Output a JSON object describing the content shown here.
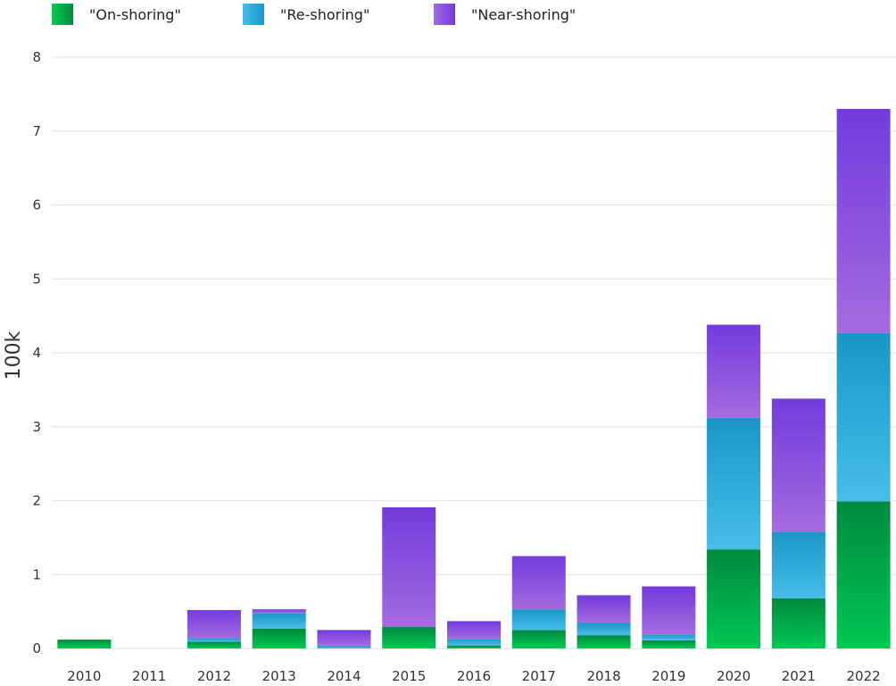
{
  "chart_data": {
    "type": "bar",
    "stacked": true,
    "title": "",
    "xlabel": "",
    "ylabel": "100k",
    "ylim": [
      0,
      8
    ],
    "yticks": [
      0,
      1,
      2,
      3,
      4,
      5,
      6,
      7,
      8
    ],
    "grid": true,
    "legend_position": "top-left",
    "categories": [
      "2010",
      "2011",
      "2012",
      "2013",
      "2014",
      "2015",
      "2016",
      "2017",
      "2018",
      "2019",
      "2020",
      "2021",
      "2022"
    ],
    "series": [
      {
        "name": "\"On-shoring\"",
        "color_top": "#008A3E",
        "color_bottom": "#00C853",
        "values": [
          0.12,
          0,
          0.09,
          0.27,
          0,
          0.29,
          0.04,
          0.25,
          0.18,
          0.11,
          1.34,
          0.68,
          1.99
        ]
      },
      {
        "name": "\"Re-shoring\"",
        "color_top": "#1A96C6",
        "color_bottom": "#47BDEA",
        "values": [
          0,
          0,
          0.05,
          0.21,
          0.04,
          0,
          0.09,
          0.28,
          0.17,
          0.08,
          1.78,
          0.9,
          2.28
        ]
      },
      {
        "name": "\"Near-shoring\"",
        "color_top": "#733BDD",
        "color_bottom": "#A46BE0",
        "values": [
          0,
          0,
          0.38,
          0.05,
          0.21,
          1.62,
          0.24,
          0.72,
          0.37,
          0.65,
          1.26,
          1.8,
          3.03
        ]
      }
    ]
  }
}
